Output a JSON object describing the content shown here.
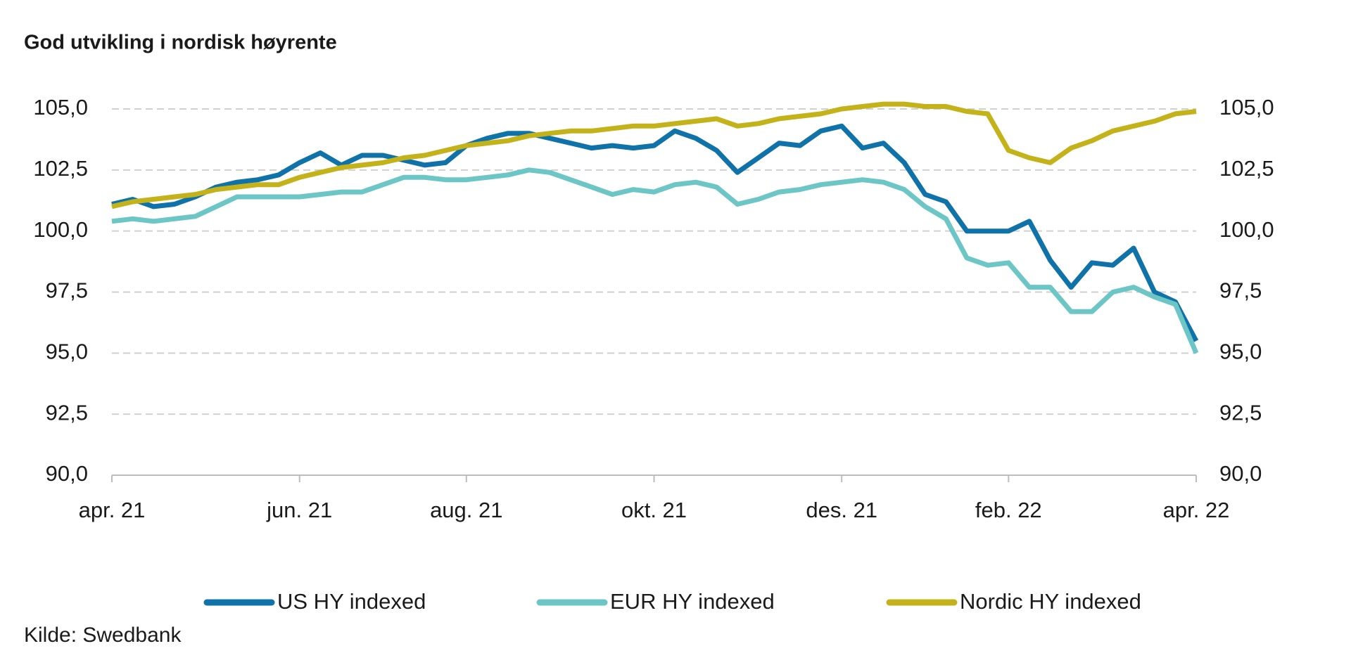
{
  "chart_data": {
    "type": "line",
    "title": "God utvikling i nordisk høyrente",
    "source": "Kilde: Swedbank",
    "categories": [
      "apr. 21",
      null,
      null,
      null,
      null,
      null,
      null,
      null,
      null,
      "jun. 21",
      null,
      null,
      null,
      null,
      null,
      null,
      null,
      "aug. 21",
      null,
      null,
      null,
      null,
      null,
      null,
      null,
      null,
      "okt. 21",
      null,
      null,
      null,
      null,
      null,
      null,
      null,
      null,
      "des. 21",
      null,
      null,
      null,
      null,
      null,
      null,
      null,
      "feb. 22",
      null,
      null,
      null,
      null,
      null,
      null,
      null,
      null,
      "apr. 22"
    ],
    "series": [
      {
        "name": "US HY indexed",
        "color": "#0f72a8",
        "values": [
          101.1,
          101.3,
          101.0,
          101.1,
          101.4,
          101.8,
          102.0,
          102.1,
          102.3,
          102.8,
          103.2,
          102.7,
          103.1,
          103.1,
          102.9,
          102.7,
          102.8,
          103.5,
          103.8,
          104.0,
          104.0,
          103.8,
          103.6,
          103.4,
          103.5,
          103.4,
          103.5,
          104.1,
          103.8,
          103.3,
          102.4,
          103.0,
          103.6,
          103.5,
          104.1,
          104.3,
          103.4,
          103.6,
          102.8,
          101.5,
          101.2,
          100.0,
          100.0,
          100.0,
          100.4,
          98.8,
          97.7,
          98.7,
          98.6,
          99.3,
          97.5,
          97.1,
          95.5
        ]
      },
      {
        "name": "EUR HY indexed",
        "color": "#6cc6c6",
        "values": [
          100.4,
          100.5,
          100.4,
          100.5,
          100.6,
          101.0,
          101.4,
          101.4,
          101.4,
          101.4,
          101.5,
          101.6,
          101.6,
          101.9,
          102.2,
          102.2,
          102.1,
          102.1,
          102.2,
          102.3,
          102.5,
          102.4,
          102.1,
          101.8,
          101.5,
          101.7,
          101.6,
          101.9,
          102.0,
          101.8,
          101.1,
          101.3,
          101.6,
          101.7,
          101.9,
          102.0,
          102.1,
          102.0,
          101.7,
          101.0,
          100.5,
          98.9,
          98.6,
          98.7,
          97.7,
          97.7,
          96.7,
          96.7,
          97.5,
          97.7,
          97.3,
          97.0,
          95.0
        ]
      },
      {
        "name": "Nordic HY indexed",
        "color": "#c4b21a",
        "values": [
          101.0,
          101.2,
          101.3,
          101.4,
          101.5,
          101.7,
          101.8,
          101.9,
          101.9,
          102.2,
          102.4,
          102.6,
          102.7,
          102.8,
          103.0,
          103.1,
          103.3,
          103.5,
          103.6,
          103.7,
          103.9,
          104.0,
          104.1,
          104.1,
          104.2,
          104.3,
          104.3,
          104.4,
          104.5,
          104.6,
          104.3,
          104.4,
          104.6,
          104.7,
          104.8,
          105.0,
          105.1,
          105.2,
          105.2,
          105.1,
          105.1,
          104.9,
          104.8,
          103.3,
          103.0,
          102.8,
          103.4,
          103.7,
          104.1,
          104.3,
          104.5,
          104.8,
          104.9
        ]
      }
    ],
    "ylim": [
      90,
      105
    ],
    "yticks": [
      {
        "value": 90,
        "label": "90,0"
      },
      {
        "value": 92.5,
        "label": "92,5"
      },
      {
        "value": 95,
        "label": "95,0"
      },
      {
        "value": 97.5,
        "label": "97,5"
      },
      {
        "value": 100,
        "label": "100,0"
      },
      {
        "value": 102.5,
        "label": "102,5"
      },
      {
        "value": 105,
        "label": "105,0"
      }
    ],
    "y2lim": [
      90,
      105
    ],
    "y2ticks": [
      {
        "value": 90,
        "label": "90,0"
      },
      {
        "value": 92.5,
        "label": "92,5"
      },
      {
        "value": 95,
        "label": "95,0"
      },
      {
        "value": 97.5,
        "label": "97,5"
      },
      {
        "value": 100,
        "label": "100,0"
      },
      {
        "value": 102.5,
        "label": "102,5"
      },
      {
        "value": 105,
        "label": "105,0"
      }
    ],
    "grid": true,
    "legend": "bottom"
  }
}
